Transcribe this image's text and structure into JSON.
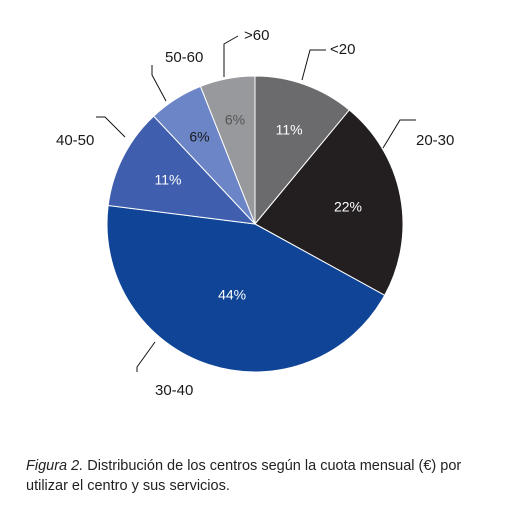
{
  "chart_data": {
    "type": "pie",
    "title": "",
    "categories": [
      "<20",
      "20-30",
      "30-40",
      "40-50",
      "50-60",
      ">60"
    ],
    "values": [
      11,
      22,
      44,
      11,
      6,
      6
    ],
    "value_labels": [
      "11%",
      "22%",
      "44%",
      "11%",
      "6%",
      "6%"
    ],
    "colors": [
      "#6b6b6d",
      "#231f20",
      "#0f4496",
      "#3f5fae",
      "#6c85c7",
      "#98999c"
    ],
    "label_colors": [
      "#ffffff",
      "#ffffff",
      "#ffffff",
      "#ffffff",
      "#1a1a1a",
      "#555555"
    ],
    "start_angle_deg": 0,
    "direction": "clockwise",
    "legend": "none (callout labels)"
  },
  "caption": {
    "figure_label": "Figura 2.",
    "text": " Distribución de los centros según la cuota mensual (€) por utilizar el centro y sus servicios."
  }
}
